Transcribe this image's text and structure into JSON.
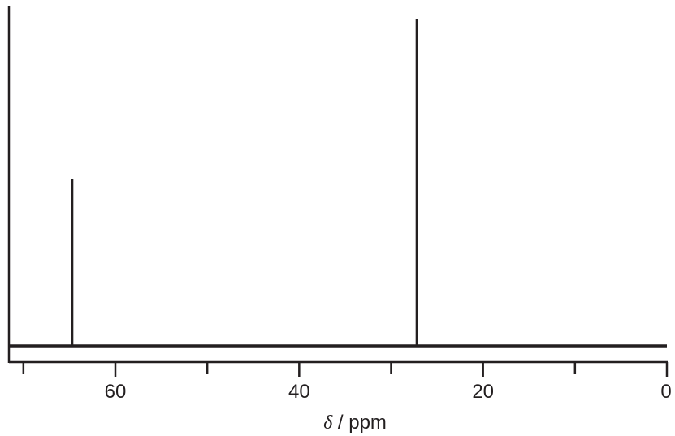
{
  "chart_data": {
    "type": "bar",
    "title": "",
    "xlabel_symbol": "δ",
    "xlabel_unit": " / ppm",
    "ylabel": "",
    "x_reversed": true,
    "xlim": [
      71.5,
      0
    ],
    "ylim": [
      0,
      1
    ],
    "x_ticks_major": [
      60,
      40,
      20,
      0
    ],
    "x_tick_labels": [
      "60",
      "40",
      "20",
      "0"
    ],
    "x_ticks_minor": [
      70,
      50,
      30,
      10
    ],
    "peaks": [
      {
        "x": 64.7,
        "y": 0.51
      },
      {
        "x": 27.2,
        "y": 1.0
      }
    ],
    "grid": false,
    "legend": "none",
    "colors": {
      "line": "#231f20",
      "background": "#ffffff"
    }
  }
}
